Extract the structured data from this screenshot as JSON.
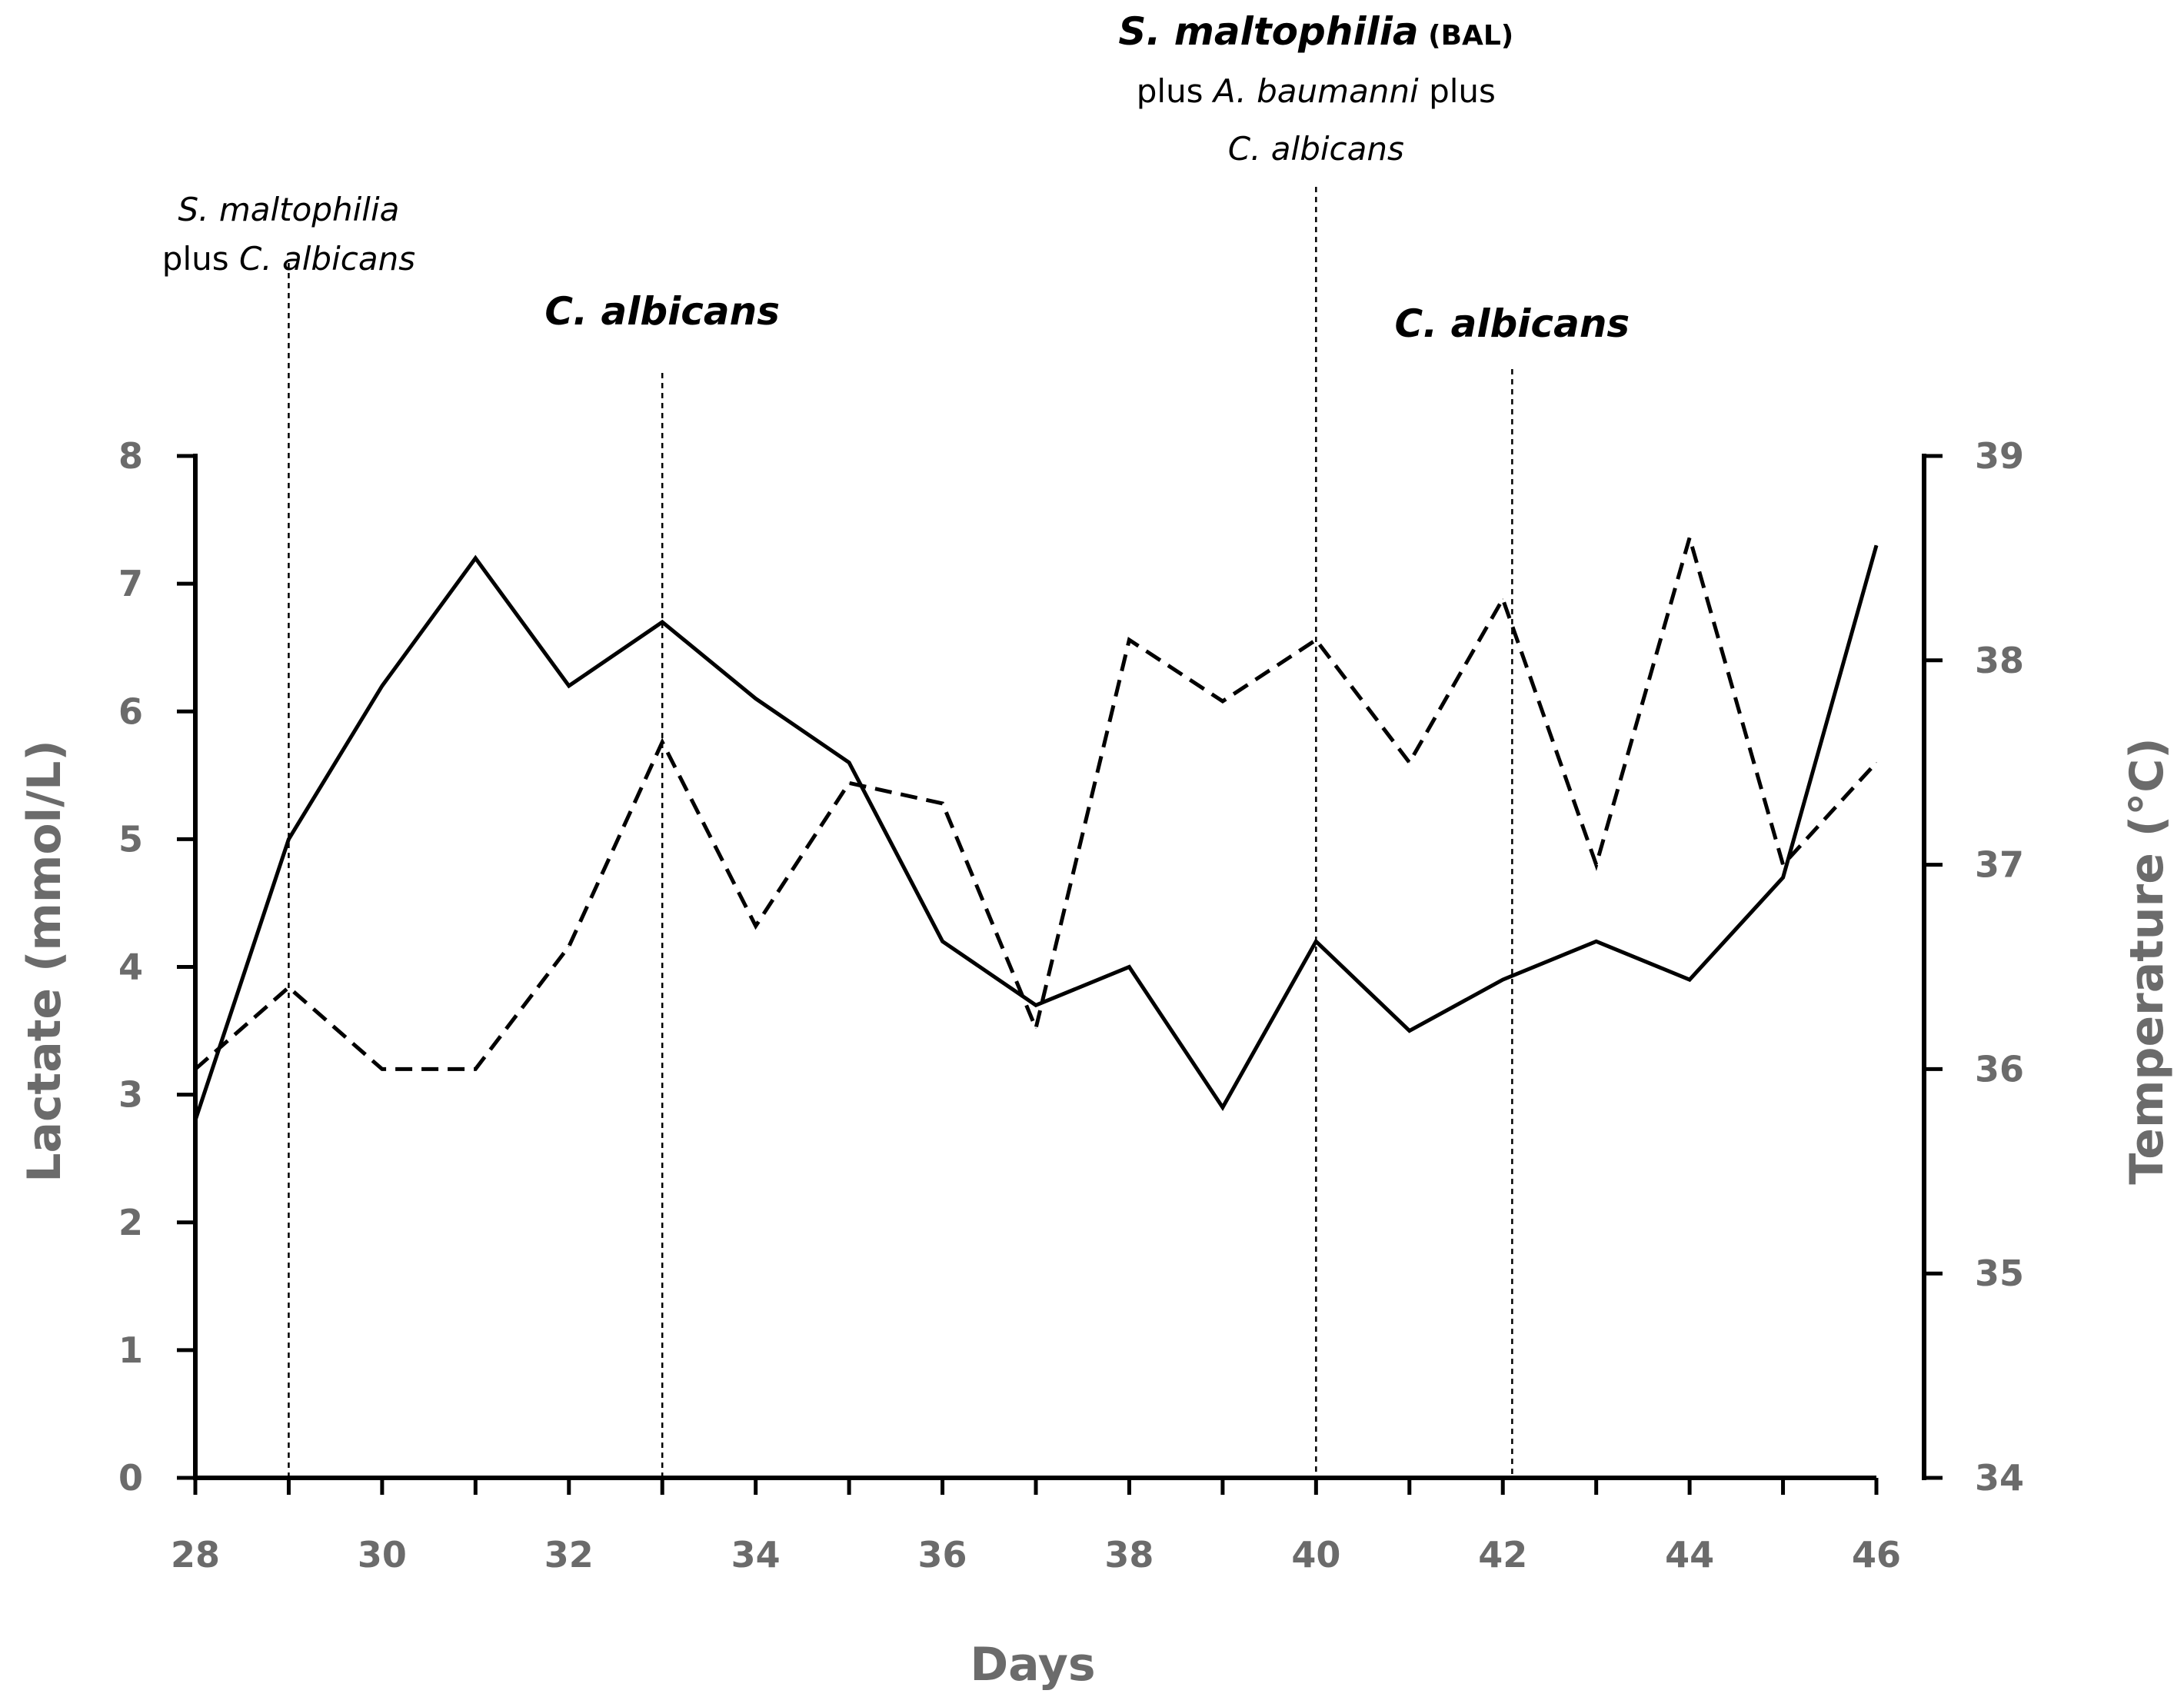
{
  "chart_data": {
    "type": "line",
    "xlabel": "Days",
    "ylabel_left": "Lactate (mmol/L)",
    "ylabel_right": "Temperature (°C)",
    "xlim": [
      28,
      46
    ],
    "ylim_left": [
      0,
      8
    ],
    "ylim_right": [
      34,
      39
    ],
    "x_ticks": [
      "28",
      "30",
      "32",
      "34",
      "36",
      "38",
      "40",
      "42",
      "44",
      "46"
    ],
    "y_left_ticks": [
      "0",
      "1",
      "2",
      "3",
      "4",
      "5",
      "6",
      "7",
      "8"
    ],
    "y_right_ticks": [
      "34",
      "35",
      "36",
      "37",
      "38",
      "39"
    ],
    "grid": false,
    "series": [
      {
        "name": "Lactate",
        "axis": "left",
        "style": "solid",
        "x": [
          28,
          29,
          30,
          31,
          32,
          33,
          34,
          35,
          36,
          37,
          38,
          39,
          40,
          41,
          42,
          43,
          44,
          45,
          46
        ],
        "values": [
          2.8,
          5.0,
          6.2,
          7.2,
          6.2,
          6.7,
          6.1,
          5.6,
          4.2,
          3.7,
          4.0,
          2.9,
          4.2,
          3.5,
          3.9,
          4.2,
          3.9,
          4.7,
          7.3
        ]
      },
      {
        "name": "Temperature",
        "axis": "right",
        "style": "dashed",
        "x": [
          28,
          29,
          30,
          31,
          32,
          33,
          34,
          35,
          36,
          37,
          38,
          39,
          40,
          41,
          42,
          43,
          44,
          45,
          46
        ],
        "values": [
          36.0,
          36.4,
          36.0,
          36.0,
          36.6,
          37.6,
          36.7,
          37.4,
          37.3,
          36.2,
          38.1,
          37.8,
          38.1,
          37.5,
          38.3,
          37.0,
          38.6,
          37.0,
          37.5
        ]
      }
    ],
    "annotations": [
      {
        "x": 29,
        "lines": [
          [
            {
              "text": "S. maltophilia",
              "style": "italic"
            }
          ],
          [
            {
              "text": "plus ",
              "style": "normal"
            },
            {
              "text": "C. albicans",
              "style": "italic"
            }
          ]
        ]
      },
      {
        "x": 33,
        "lines": [
          [
            {
              "text": "C. albicans",
              "style": "bold-italic"
            }
          ]
        ]
      },
      {
        "x": 40,
        "lines": [
          [
            {
              "text": "S. maltophilia",
              "style": "bold-italic"
            },
            {
              "text": " (BAL)",
              "style": "bold-small"
            }
          ],
          [
            {
              "text": "plus ",
              "style": "normal"
            },
            {
              "text": "A. baumanni",
              "style": "italic"
            },
            {
              "text": " plus",
              "style": "normal"
            }
          ],
          [
            {
              "text": "C. albicans",
              "style": "italic"
            }
          ]
        ]
      },
      {
        "x": 42.1,
        "lines": [
          [
            {
              "text": "C. albicans",
              "style": "bold-italic"
            }
          ]
        ]
      }
    ]
  }
}
